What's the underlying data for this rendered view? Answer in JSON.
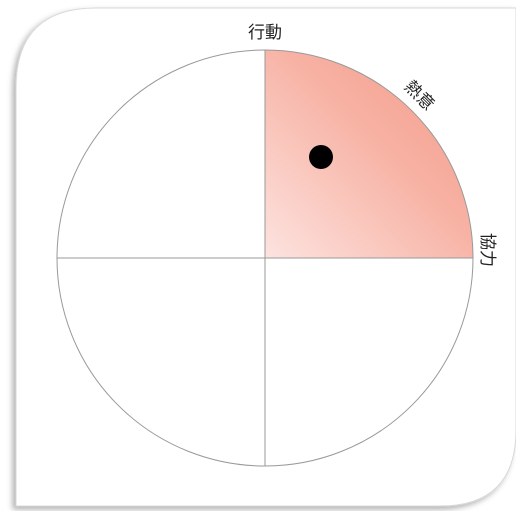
{
  "labels": {
    "top": "行動",
    "diagonal": "熱意",
    "right": "協力"
  }
}
